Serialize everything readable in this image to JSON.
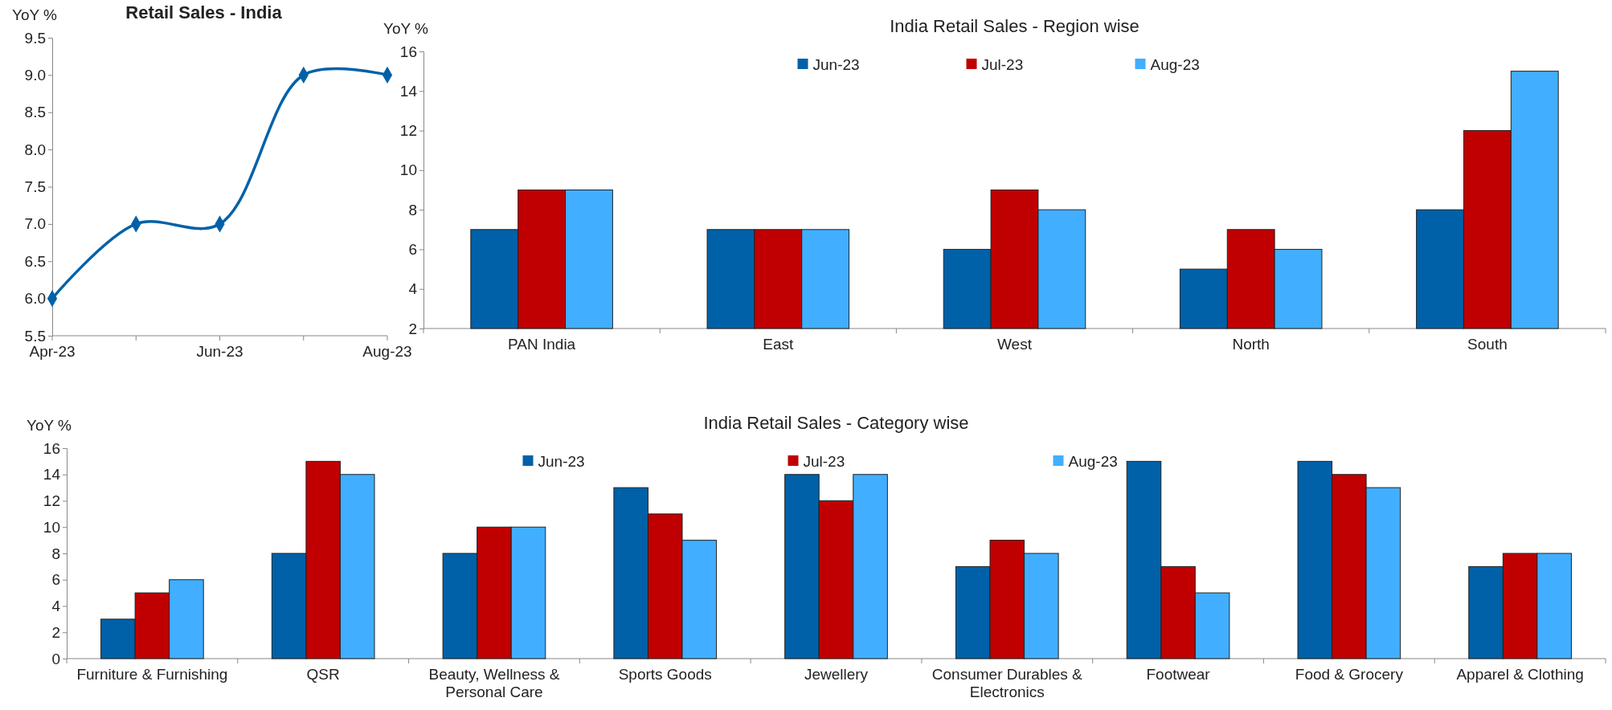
{
  "chart_data": [
    {
      "type": "line",
      "title": "Retail Sales - India",
      "ylabel": "YoY %",
      "categories": [
        "Apr-23",
        null,
        "Jun-23",
        null,
        "Aug-23"
      ],
      "series": [
        {
          "color": "#0061a8",
          "values": [
            6,
            7,
            7,
            9,
            9
          ]
        }
      ],
      "ylim": [
        5.5,
        9.5
      ],
      "yticks": [
        5.5,
        {
          "value": 6,
          "label": "6.0"
        },
        6.5,
        {
          "value": 7,
          "label": "7.0"
        },
        7.5,
        {
          "value": 8,
          "label": "8.0"
        },
        8.5,
        {
          "value": 9,
          "label": "9.0"
        },
        9.5
      ],
      "marker": "diamond",
      "grid": false,
      "legend": false
    },
    {
      "type": "bar",
      "title": "India Retail Sales - Region wise",
      "ylabel": "YoY %",
      "categories": [
        "PAN India",
        "East",
        "West",
        "North",
        "South"
      ],
      "series": [
        {
          "name": "Jun-23",
          "color": "#0061a8",
          "values": [
            7,
            7,
            6,
            5,
            8
          ]
        },
        {
          "name": "Jul-23",
          "color": "#c00000",
          "values": [
            9,
            7,
            9,
            7,
            12
          ]
        },
        {
          "name": "Aug-23",
          "color": "#41aeff",
          "values": [
            9,
            7,
            8,
            6,
            15
          ]
        }
      ],
      "ylim": [
        2,
        16
      ],
      "yticks": [
        2,
        4,
        6,
        8,
        10,
        12,
        14,
        16
      ],
      "grid": false,
      "legend": "top"
    },
    {
      "type": "bar",
      "title": "India Retail Sales - Category wise",
      "ylabel": "YoY %",
      "categories": [
        "Furniture & Furnishing",
        "QSR",
        "Beauty, Wellness & Personal Care",
        "Sports Goods",
        "Jewellery",
        "Consumer Durables & Electronics",
        "Footwear",
        "Food & Grocery",
        "Apparel & Clothing"
      ],
      "series": [
        {
          "name": "Jun-23",
          "color": "#0061a8",
          "values": [
            3,
            8,
            8,
            13,
            14,
            7,
            15,
            15,
            7
          ]
        },
        {
          "name": "Jul-23",
          "color": "#c00000",
          "values": [
            5,
            15,
            10,
            11,
            12,
            9,
            7,
            14,
            8
          ]
        },
        {
          "name": "Aug-23",
          "color": "#41aeff",
          "values": [
            6,
            14,
            10,
            9,
            14,
            8,
            5,
            13,
            8
          ]
        }
      ],
      "ylim": [
        0,
        16
      ],
      "yticks": [
        0,
        2,
        4,
        6,
        8,
        10,
        12,
        14,
        16
      ],
      "grid": false,
      "legend": "top"
    }
  ]
}
